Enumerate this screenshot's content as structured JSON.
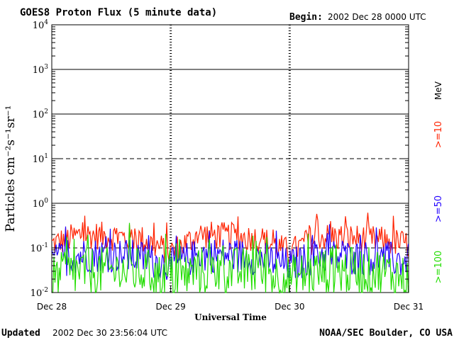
{
  "header": {
    "title": "GOES8 Proton Flux (5 minute data)",
    "begin_label": "Begin:",
    "begin_value": "2002 Dec 28 0000 UTC"
  },
  "footer": {
    "updated_label": "Updated",
    "updated_value": "2002 Dec 30 23:56:04 UTC",
    "credit": "NOAA/SEC Boulder, CO USA"
  },
  "chart_data": {
    "type": "line",
    "title": "GOES8 Proton Flux (5 minute data)",
    "xlabel": "Universal Time",
    "ylabel": "Particles cm⁻²s⁻¹sr⁻¹",
    "y_scale": "log",
    "ylim": [
      0.01,
      10000
    ],
    "xlim": [
      "2002-12-28",
      "2002-12-31"
    ],
    "x_ticks": [
      "Dec 28",
      "Dec 29",
      "Dec 30",
      "Dec 31"
    ],
    "y_ticks": [
      {
        "base": "10",
        "exp": "4"
      },
      {
        "base": "10",
        "exp": "3"
      },
      {
        "base": "10",
        "exp": "2"
      },
      {
        "base": "10",
        "exp": "1"
      },
      {
        "base": "10",
        "exp": "0"
      },
      {
        "base": "10",
        "exp": "-1"
      },
      {
        "base": "10",
        "exp": "-2"
      }
    ],
    "grid": "horizontal lines at each decade; dashed at 10^1 and 10^-1",
    "legend": {
      "unit": "MeV",
      "placement": "right, vertical",
      "entries": [
        {
          "label": ">=10",
          "color": "#ff2200"
        },
        {
          "label": ">=50",
          "color": "#2200ff"
        },
        {
          "label": ">=100",
          "color": "#22dd00"
        }
      ]
    },
    "series": [
      {
        "name": ">=10",
        "color": "#ff2200",
        "x": [
          "2002-12-28 00:00",
          "2002-12-28 06:00",
          "2002-12-28 12:00",
          "2002-12-28 18:00",
          "2002-12-29 00:00",
          "2002-12-29 06:00",
          "2002-12-29 12:00",
          "2002-12-29 18:00",
          "2002-12-30 00:00",
          "2002-12-30 06:00",
          "2002-12-30 12:00",
          "2002-12-30 18:00",
          "2002-12-31 00:00"
        ],
        "values": [
          0.12,
          0.2,
          0.18,
          0.16,
          0.08,
          0.2,
          0.18,
          0.16,
          0.08,
          0.18,
          0.17,
          0.15,
          0.12
        ]
      },
      {
        "name": ">=50",
        "color": "#2200ff",
        "x": [
          "2002-12-28 00:00",
          "2002-12-28 06:00",
          "2002-12-28 12:00",
          "2002-12-28 18:00",
          "2002-12-29 00:00",
          "2002-12-29 06:00",
          "2002-12-29 12:00",
          "2002-12-29 18:00",
          "2002-12-30 00:00",
          "2002-12-30 06:00",
          "2002-12-30 12:00",
          "2002-12-30 18:00",
          "2002-12-31 00:00"
        ],
        "values": [
          0.05,
          0.07,
          0.07,
          0.06,
          0.04,
          0.07,
          0.07,
          0.06,
          0.04,
          0.07,
          0.06,
          0.06,
          0.05
        ]
      },
      {
        "name": ">=100",
        "color": "#22dd00",
        "x": [
          "2002-12-28 00:00",
          "2002-12-28 06:00",
          "2002-12-28 12:00",
          "2002-12-28 18:00",
          "2002-12-29 00:00",
          "2002-12-29 06:00",
          "2002-12-29 12:00",
          "2002-12-29 18:00",
          "2002-12-30 00:00",
          "2002-12-30 06:00",
          "2002-12-30 12:00",
          "2002-12-30 18:00",
          "2002-12-31 00:00"
        ],
        "values": [
          0.02,
          0.03,
          0.03,
          0.03,
          0.02,
          0.03,
          0.03,
          0.03,
          0.02,
          0.03,
          0.03,
          0.03,
          0.02
        ]
      }
    ]
  }
}
